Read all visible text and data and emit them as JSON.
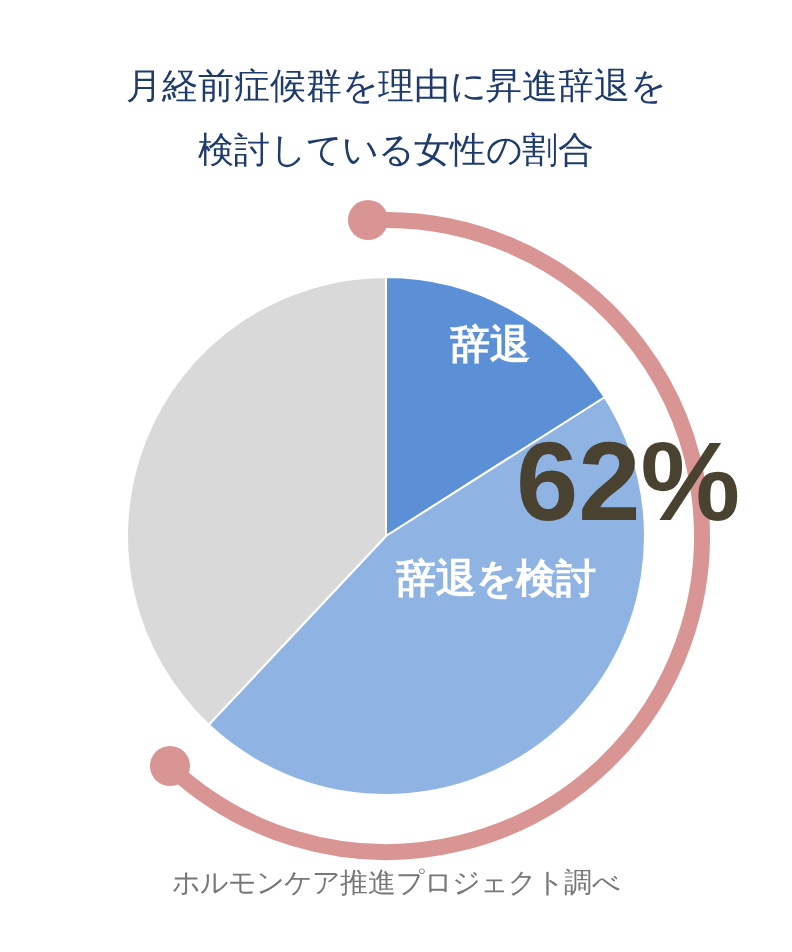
{
  "chart_data": {
    "type": "pie",
    "title": "月経前症候群を理由に昇進辞退を検討している女性の割合",
    "categories": [
      "辞退",
      "辞退を検討",
      null
    ],
    "values": [
      16,
      46,
      38
    ],
    "colors": [
      "#5b8fd6",
      "#8fb4e3",
      "#d9d9d9"
    ],
    "annotations": [
      {
        "text": "62%"
      },
      "ホルモンケア推進プロジェクト調べ"
    ],
    "data_labels": false,
    "legend": false
  }
}
